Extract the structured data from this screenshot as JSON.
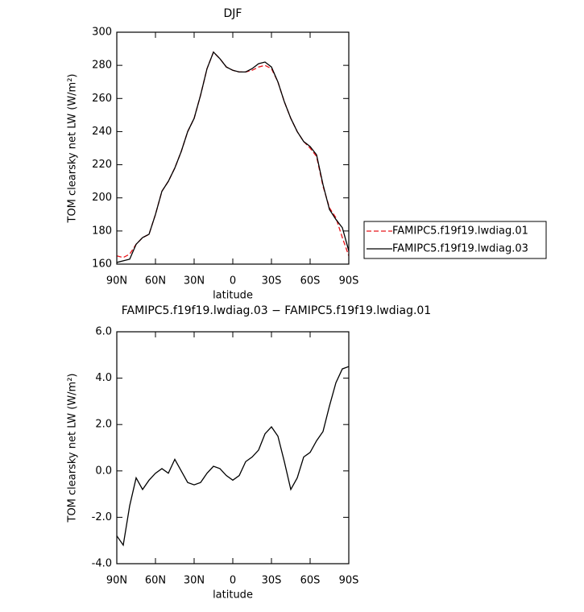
{
  "chart_data": [
    {
      "type": "line",
      "title": "DJF",
      "xlabel": "latitude",
      "ylabel": "TOM clearsky net LW (W/m²)",
      "x": [
        90,
        85,
        80,
        75,
        70,
        65,
        60,
        55,
        50,
        45,
        40,
        35,
        30,
        25,
        20,
        15,
        10,
        5,
        0,
        -5,
        -10,
        -15,
        -20,
        -25,
        -30,
        -35,
        -40,
        -45,
        -50,
        -55,
        -60,
        -65,
        -70,
        -75,
        -80,
        -85,
        -90
      ],
      "xlim": [
        90,
        -90
      ],
      "xticks": [
        {
          "value": 90,
          "label": "90N"
        },
        {
          "value": 60,
          "label": "60N"
        },
        {
          "value": 30,
          "label": "30N"
        },
        0,
        {
          "value": -30,
          "label": "30S"
        },
        {
          "value": -60,
          "label": "60S"
        },
        {
          "value": -90,
          "label": "90S"
        }
      ],
      "ylim": [
        160,
        300
      ],
      "yticks": [
        160,
        180,
        200,
        220,
        240,
        260,
        280,
        300
      ],
      "legend": "right",
      "series": [
        {
          "name": "FAMIPC5.f19f19.lwdiag.01",
          "color": "#e8141a",
          "dash": true,
          "values": [
            165,
            164,
            166,
            172,
            176,
            178,
            190,
            204,
            210,
            218,
            228,
            240,
            248,
            262,
            278,
            288,
            284,
            279,
            277,
            276,
            276,
            277,
            279,
            280,
            278,
            270,
            258,
            248,
            240,
            234,
            230,
            225,
            207,
            194,
            188,
            176,
            165
          ]
        },
        {
          "name": "FAMIPC5.f19f19.lwdiag.03",
          "color": "#000000",
          "dash": false,
          "values": [
            161,
            162,
            163,
            172,
            176,
            178,
            190,
            204,
            210,
            218,
            228,
            240,
            248,
            262,
            278,
            288,
            284,
            279,
            277,
            276,
            276,
            278,
            281,
            282,
            279,
            270,
            258,
            248,
            240,
            234,
            231,
            226,
            208,
            193,
            187,
            182,
            168
          ]
        }
      ]
    },
    {
      "type": "line",
      "title": "FAMIPC5.f19f19.lwdiag.03 − FAMIPC5.f19f19.lwdiag.01",
      "xlabel": "latitude",
      "ylabel": "TOM clearsky net LW (W/m²)",
      "x": [
        90,
        85,
        80,
        75,
        70,
        65,
        60,
        55,
        50,
        45,
        40,
        35,
        30,
        25,
        20,
        15,
        10,
        5,
        0,
        -5,
        -10,
        -15,
        -20,
        -25,
        -30,
        -35,
        -40,
        -45,
        -50,
        -55,
        -60,
        -65,
        -70,
        -75,
        -80,
        -85,
        -90
      ],
      "xlim": [
        90,
        -90
      ],
      "xticks": [
        {
          "value": 90,
          "label": "90N"
        },
        {
          "value": 60,
          "label": "60N"
        },
        {
          "value": 30,
          "label": "30N"
        },
        0,
        {
          "value": -30,
          "label": "30S"
        },
        {
          "value": -60,
          "label": "60S"
        },
        {
          "value": -90,
          "label": "90S"
        }
      ],
      "ylim": [
        -4,
        6
      ],
      "yticks": [
        {
          "value": -4,
          "label": "-4.0"
        },
        {
          "value": -2,
          "label": "-2.0"
        },
        {
          "value": 0,
          "label": "0.0"
        },
        {
          "value": 2,
          "label": "2.0"
        },
        {
          "value": 4,
          "label": "4.0"
        },
        {
          "value": 6,
          "label": "6.0"
        }
      ],
      "series": [
        {
          "color": "#000000",
          "dash": false,
          "values": [
            -2.8,
            -3.2,
            -1.5,
            -0.3,
            -0.8,
            -0.4,
            -0.1,
            0.1,
            -0.1,
            0.5,
            0.0,
            -0.5,
            -0.6,
            -0.5,
            -0.1,
            0.2,
            0.1,
            -0.2,
            -0.4,
            -0.2,
            0.4,
            0.6,
            0.9,
            1.6,
            1.9,
            1.5,
            0.4,
            -0.8,
            -0.3,
            0.6,
            0.8,
            1.3,
            1.7,
            2.8,
            3.8,
            4.4,
            4.5
          ]
        }
      ]
    }
  ]
}
